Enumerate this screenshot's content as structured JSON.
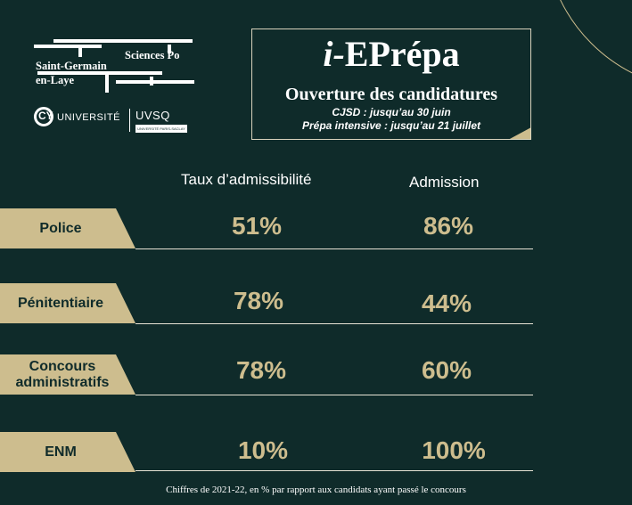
{
  "logos": {
    "sciences_po": {
      "line1": "Sciences Po",
      "line2": "Saint-Germain",
      "line3": "en-Laye"
    },
    "cy": {
      "mark": "CY",
      "text": "UNIVERSITÉ"
    },
    "uvsq": {
      "text": "UVSQ",
      "sub": "UNIVERSITÉ PARIS-SACLAY"
    }
  },
  "info": {
    "title_prefix": "i-",
    "title_main": "EPrépa",
    "subtitle": "Ouverture des candidatures",
    "line1": "CJSD :  jusqu’au 30 juin",
    "line2": "Prépa intensive : jusqu’au 21 juillet"
  },
  "columns": {
    "left": "Taux d’admissibilité",
    "right": "Admission"
  },
  "rows": [
    {
      "label": "Police",
      "admissibilite": "51%",
      "admission": "86%"
    },
    {
      "label": "Pénitentiaire",
      "admissibilite": "78%",
      "admission": "44%"
    },
    {
      "label": "Concours administratifs",
      "admissibilite": "78%",
      "admission": "60%"
    },
    {
      "label": "ENM",
      "admissibilite": "10%",
      "admission": "100%"
    }
  ],
  "footer": "Chiffres de 2021-22, en % par rapport aux candidats ayant passé le concours",
  "colors": {
    "background": "#0f2b2a",
    "accent": "#cdbd8e"
  }
}
